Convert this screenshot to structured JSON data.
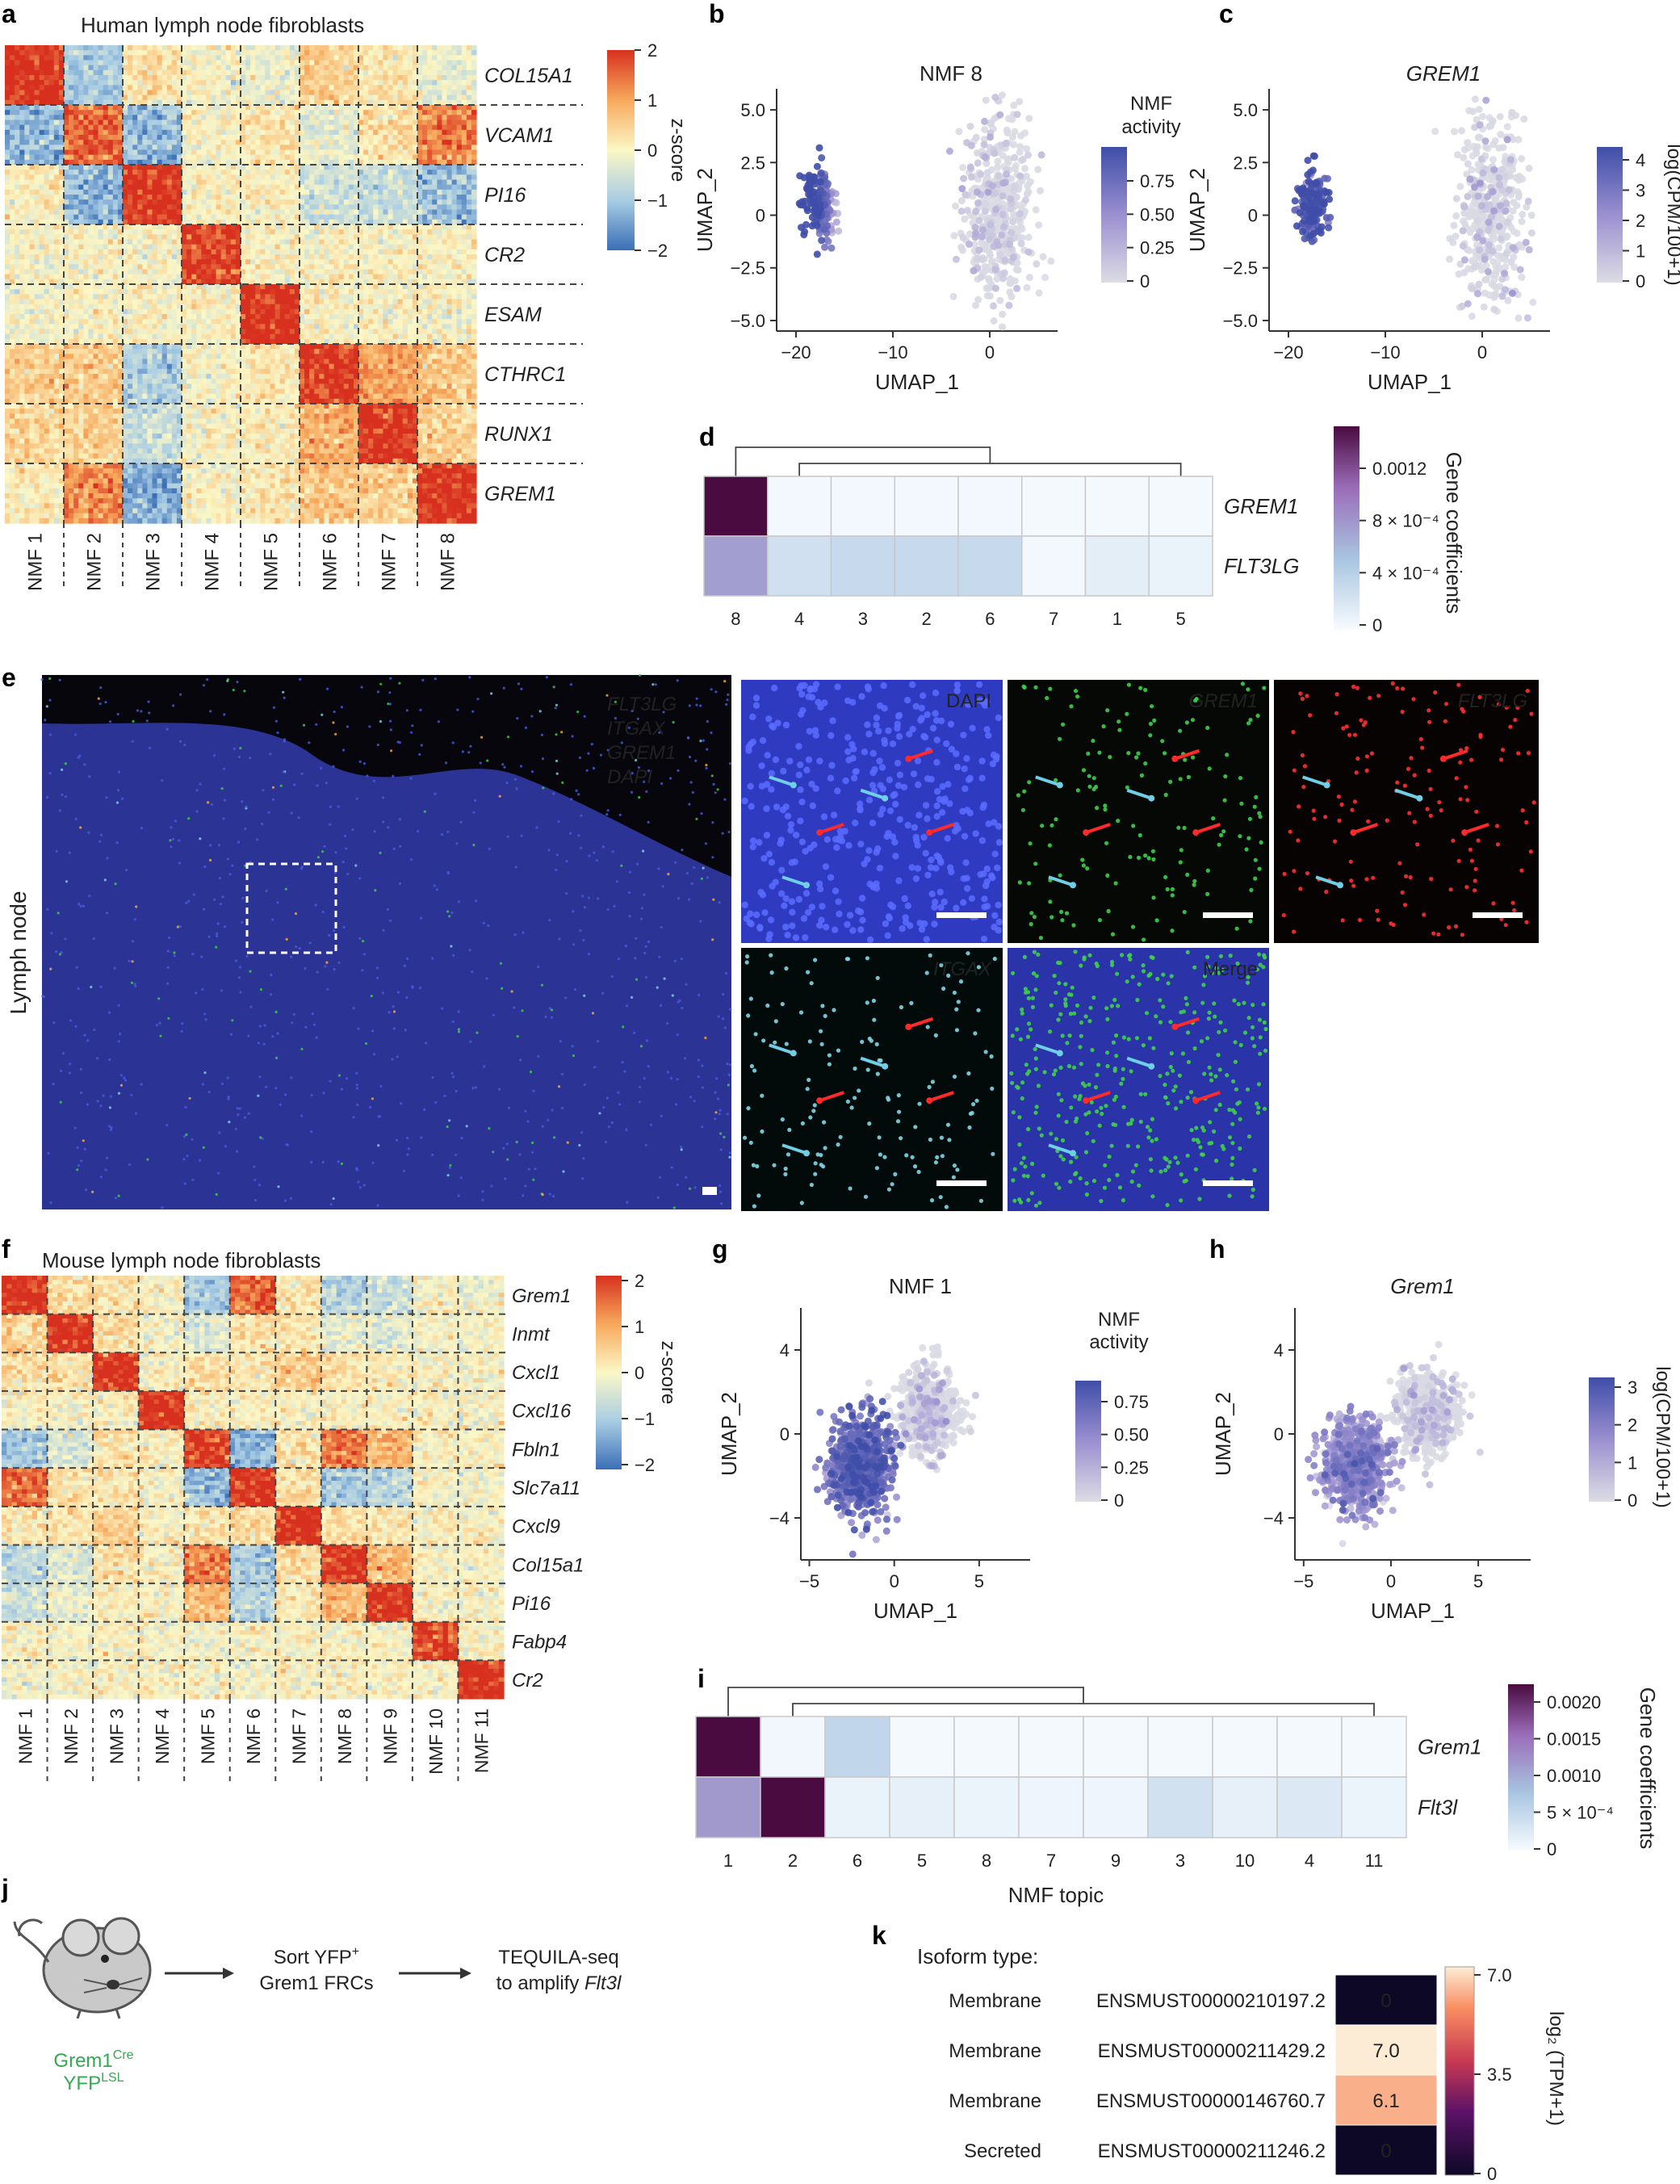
{
  "panels": {
    "a": {
      "letter": "a",
      "title": "Human lymph node fibroblasts",
      "genes": [
        "COL15A1",
        "VCAM1",
        "PI16",
        "CR2",
        "ESAM",
        "CTHRC1",
        "RUNX1",
        "GREM1"
      ],
      "columns": [
        "NMF 1",
        "NMF 2",
        "NMF 3",
        "NMF 4",
        "NMF 5",
        "NMF 6",
        "NMF 7",
        "NMF 8"
      ],
      "colorbar": {
        "label": "z-score",
        "ticks": [
          "2",
          "1",
          "0",
          "−1",
          "−2"
        ]
      }
    },
    "b": {
      "letter": "b",
      "title": "NMF 8",
      "xlabel": "UMAP_1",
      "ylabel": "UMAP_2",
      "xticks": [
        "−20",
        "−10",
        "0"
      ],
      "yticks": [
        "5.0",
        "2.5",
        "0",
        "−2.5",
        "−5.0"
      ],
      "colorbar": {
        "label_lines": [
          "NMF",
          "activity"
        ],
        "ticks": [
          "0.75",
          "0.50",
          "0.25",
          "0"
        ]
      }
    },
    "c": {
      "letter": "c",
      "title": "GREM1",
      "xlabel": "UMAP_1",
      "ylabel": "UMAP_2",
      "xticks": [
        "−20",
        "−10",
        "0"
      ],
      "yticks": [
        "5.0",
        "2.5",
        "0",
        "−2.5",
        "−5.0"
      ],
      "colorbar": {
        "label": "log(CPM/100+1)",
        "ticks": [
          "4",
          "3",
          "2",
          "1",
          "0"
        ]
      }
    },
    "d": {
      "letter": "d",
      "rows": [
        "GREM1",
        "FLT3LG"
      ],
      "columns": [
        "8",
        "4",
        "3",
        "2",
        "6",
        "7",
        "1",
        "5"
      ],
      "colorbar": {
        "label": "Gene coefficients",
        "ticks": [
          "0.0012",
          "8 × 10⁻⁴",
          "4 × 10⁻⁴",
          "0"
        ]
      }
    },
    "e": {
      "letter": "e",
      "side_label": "Lymph node",
      "legend": [
        {
          "text": "FLT3LG",
          "color": "#ff3030"
        },
        {
          "text": "ITGAX",
          "color": "#7fd6e6"
        },
        {
          "text": "GREM1",
          "color": "#3fcf4a"
        },
        {
          "text": "DAPI",
          "color": "#5a6bff"
        }
      ],
      "tiles": [
        {
          "name": "DAPI",
          "color": "#9aa6ff"
        },
        {
          "name": "GREM1",
          "color": "#3fcf4a"
        },
        {
          "name": "FLT3LG",
          "color": "#ff3030"
        },
        {
          "name": "ITGAX",
          "color": "#7fd6e6"
        },
        {
          "name": "Merge",
          "color": "#ffffff"
        }
      ]
    },
    "f": {
      "letter": "f",
      "title": "Mouse lymph node fibroblasts",
      "genes": [
        "Grem1",
        "Inmt",
        "Cxcl1",
        "Cxcl16",
        "Fbln1",
        "Slc7a11",
        "Cxcl9",
        "Col15a1",
        "Pi16",
        "Fabp4",
        "Cr2"
      ],
      "columns": [
        "NMF 1",
        "NMF 2",
        "NMF 3",
        "NMF 4",
        "NMF 5",
        "NMF 6",
        "NMF 7",
        "NMF 8",
        "NMF 9",
        "NMF 10",
        "NMF 11"
      ],
      "colorbar": {
        "label": "z-score",
        "ticks": [
          "2",
          "1",
          "0",
          "−1",
          "−2"
        ]
      }
    },
    "g": {
      "letter": "g",
      "title": "NMF 1",
      "xlabel": "UMAP_1",
      "ylabel": "UMAP_2",
      "xticks": [
        "−5",
        "0",
        "5"
      ],
      "yticks": [
        "4",
        "0",
        "−4"
      ],
      "colorbar": {
        "label_lines": [
          "NMF",
          "activity"
        ],
        "ticks": [
          "0.75",
          "0.50",
          "0.25",
          "0"
        ]
      }
    },
    "h": {
      "letter": "h",
      "title": "Grem1",
      "xlabel": "UMAP_1",
      "ylabel": "UMAP_2",
      "xticks": [
        "−5",
        "0",
        "5"
      ],
      "yticks": [
        "4",
        "0",
        "−4"
      ],
      "colorbar": {
        "label": "log(CPM/100+1)",
        "ticks": [
          "3",
          "2",
          "1",
          "0"
        ]
      }
    },
    "i": {
      "letter": "i",
      "rows": [
        "Grem1",
        "Flt3l"
      ],
      "columns": [
        "1",
        "2",
        "6",
        "5",
        "8",
        "7",
        "9",
        "3",
        "10",
        "4",
        "11"
      ],
      "xlabel": "NMF topic",
      "colorbar": {
        "label": "Gene coefficients",
        "ticks": [
          "0.0020",
          "0.0015",
          "0.0010",
          "5 × 10⁻⁴",
          "0"
        ]
      }
    },
    "j": {
      "letter": "j",
      "mouse_label_1": "Grem1",
      "mouse_label_1_sup": "Cre",
      "mouse_label_2": "YFP",
      "mouse_label_2_sup": "LSL",
      "step1_line1": "Sort YFP",
      "step1_line1_sup": "+",
      "step1_line2": "Grem1 FRCs",
      "step2_line1": "TEQUILA-seq",
      "step2_line2": "to amplify ",
      "step2_gene": "Flt3l"
    },
    "k": {
      "letter": "k",
      "header": "Isoform type:",
      "rows": [
        {
          "type": "Membrane",
          "id": "ENSMUST00000210197.2",
          "value": "0"
        },
        {
          "type": "Membrane",
          "id": "ENSMUST00000211429.2",
          "value": "7.0"
        },
        {
          "type": "Membrane",
          "id": "ENSMUST00000146760.7",
          "value": "6.1"
        },
        {
          "type": "Secreted",
          "id": "ENSMUST00000211246.2",
          "value": "0"
        }
      ],
      "colorbar": {
        "label": "log₂ (TPM+1)",
        "ticks": [
          "7.0",
          "3.5",
          "0"
        ]
      }
    }
  },
  "chart_data": [
    {
      "panel": "a",
      "type": "heatmap",
      "title": "Human lymph node fibroblasts",
      "rows": [
        "COL15A1",
        "VCAM1",
        "PI16",
        "CR2",
        "ESAM",
        "CTHRC1",
        "RUNX1",
        "GREM1"
      ],
      "columns": [
        "NMF 1",
        "NMF 2",
        "NMF 3",
        "NMF 4",
        "NMF 5",
        "NMF 6",
        "NMF 7",
        "NMF 8"
      ],
      "values": [
        [
          2,
          -1,
          0.3,
          0,
          -0.2,
          0.5,
          0.2,
          -0.2
        ],
        [
          -1.2,
          1.5,
          -1.2,
          0,
          0.2,
          -0.3,
          0.3,
          1.3
        ],
        [
          0.1,
          -1.2,
          2,
          0,
          0.1,
          -0.5,
          -0.6,
          -1.1
        ],
        [
          0,
          0,
          0,
          1.8,
          0,
          0,
          0,
          0
        ],
        [
          -0.1,
          0,
          0,
          0,
          2,
          0,
          0,
          0
        ],
        [
          0.5,
          0.6,
          -0.9,
          0,
          0.2,
          1.9,
          1,
          0.6
        ],
        [
          0.4,
          0.5,
          -0.6,
          0,
          0.1,
          0.9,
          2,
          0.5
        ],
        [
          0.1,
          1.2,
          -1.3,
          0,
          0.2,
          0.6,
          0.5,
          2
        ]
      ],
      "zlim": [
        -2,
        2
      ],
      "zlabel": "z-score"
    },
    {
      "panel": "d",
      "type": "heatmap",
      "rows": [
        "GREM1",
        "FLT3LG"
      ],
      "columns": [
        "8",
        "4",
        "3",
        "2",
        "6",
        "7",
        "1",
        "5"
      ],
      "values": [
        [
          0.0014,
          3e-05,
          3e-05,
          3e-05,
          3e-05,
          2e-05,
          2e-05,
          2e-05
        ],
        [
          0.0007,
          0.00024,
          0.0003,
          0.0003,
          0.0003,
          3e-05,
          0.00012,
          8e-05
        ]
      ],
      "zlim": [
        0,
        0.0014
      ],
      "zlabel": "Gene coefficients"
    },
    {
      "panel": "f",
      "type": "heatmap",
      "title": "Mouse lymph node fibroblasts",
      "rows": [
        "Grem1",
        "Inmt",
        "Cxcl1",
        "Cxcl16",
        "Fbln1",
        "Slc7a11",
        "Cxcl9",
        "Col15a1",
        "Pi16",
        "Fabp4",
        "Cr2"
      ],
      "columns": [
        "NMF 1",
        "NMF 2",
        "NMF 3",
        "NMF 4",
        "NMF 5",
        "NMF 6",
        "NMF 7",
        "NMF 8",
        "NMF 9",
        "NMF 10",
        "NMF 11"
      ],
      "values": [
        [
          2,
          0.4,
          0.3,
          0,
          -1,
          1.5,
          0.2,
          -0.8,
          -0.6,
          0,
          -0.1
        ],
        [
          0.4,
          2,
          0.3,
          0,
          -0.4,
          0.3,
          0.2,
          -0.3,
          -0.3,
          0,
          0
        ],
        [
          0.3,
          0.3,
          2,
          0,
          0.3,
          0.2,
          0.5,
          0.3,
          0.1,
          0,
          0
        ],
        [
          0,
          0,
          0,
          2,
          0.1,
          0,
          0,
          0,
          0,
          0,
          0
        ],
        [
          -1,
          -0.4,
          0.3,
          0.1,
          1.8,
          -1.2,
          0.2,
          1.3,
          0.8,
          0,
          0
        ],
        [
          1.5,
          0.3,
          0.2,
          0,
          -1.2,
          2,
          0.3,
          -1,
          -0.8,
          0,
          -0.1
        ],
        [
          0.2,
          0.2,
          0.5,
          0,
          0.2,
          0.3,
          2,
          0.3,
          0.2,
          0,
          0
        ],
        [
          -0.8,
          -0.3,
          0.3,
          0,
          1.3,
          -1,
          0.3,
          2,
          0.8,
          0,
          0
        ],
        [
          -0.6,
          -0.3,
          0.1,
          0,
          0.8,
          -0.8,
          0.2,
          0.8,
          2,
          0,
          0
        ],
        [
          0,
          0,
          0,
          0,
          0,
          0,
          0,
          0,
          0,
          1.8,
          0
        ],
        [
          -0.1,
          0,
          0,
          0,
          0,
          -0.1,
          0,
          0,
          0,
          0,
          2
        ]
      ],
      "zlim": [
        -2,
        2
      ],
      "zlabel": "z-score"
    },
    {
      "panel": "i",
      "type": "heatmap",
      "rows": [
        "Grem1",
        "Flt3l"
      ],
      "columns": [
        "1",
        "2",
        "6",
        "5",
        "8",
        "7",
        "9",
        "3",
        "10",
        "4",
        "11"
      ],
      "values": [
        [
          0.0021,
          5e-05,
          0.0005,
          3e-05,
          3e-05,
          3e-05,
          3e-05,
          3e-05,
          3e-05,
          3e-05,
          3e-05
        ],
        [
          0.0011,
          0.0021,
          0.00012,
          0.00015,
          0.0001,
          8e-05,
          8e-05,
          0.00035,
          0.00015,
          0.00025,
          0.0001
        ]
      ],
      "zlim": [
        0,
        0.0021
      ],
      "zlabel": "Gene coefficients",
      "xlabel": "NMF topic"
    },
    {
      "panel": "k",
      "type": "heatmap",
      "rows": [
        "ENSMUST00000210197.2",
        "ENSMUST00000211429.2",
        "ENSMUST00000146760.7",
        "ENSMUST00000211246.2"
      ],
      "values": [
        0,
        7.0,
        6.1,
        0
      ],
      "zlim": [
        0,
        7.0
      ],
      "zlabel": "log₂ (TPM+1)"
    },
    {
      "panel": "b",
      "type": "scatter",
      "title": "NMF 8",
      "xlabel": "UMAP_1",
      "ylabel": "UMAP_2",
      "xlim": [
        -22,
        7
      ],
      "ylim": [
        -5.5,
        6
      ],
      "clusters": [
        {
          "center": [
            -17.5,
            0.5
          ],
          "spread": [
            1.6,
            1.5
          ],
          "n": 170,
          "level": 0.85
        },
        {
          "center": [
            1,
            0
          ],
          "spread": [
            3.5,
            4.6
          ],
          "n": 460,
          "level": 0.1
        }
      ]
    },
    {
      "panel": "c",
      "type": "scatter",
      "title": "GREM1",
      "xlabel": "UMAP_1",
      "ylabel": "UMAP_2",
      "xlim": [
        -22,
        7
      ],
      "ylim": [
        -5.5,
        6
      ],
      "clusters": [
        {
          "center": [
            -17.5,
            0.5
          ],
          "spread": [
            1.6,
            1.5
          ],
          "n": 170,
          "level": 0.9
        },
        {
          "center": [
            1,
            0
          ],
          "spread": [
            3.5,
            4.6
          ],
          "n": 460,
          "level": 0.05
        }
      ]
    },
    {
      "panel": "g",
      "type": "scatter",
      "title": "NMF 1",
      "xlabel": "UMAP_1",
      "ylabel": "UMAP_2",
      "xlim": [
        -5.5,
        8
      ],
      "ylim": [
        -6,
        6
      ],
      "clusters": [
        {
          "center": [
            -2,
            -1.5
          ],
          "spread": [
            1.8,
            2.2
          ],
          "n": 700,
          "level": 0.7
        },
        {
          "center": [
            2,
            1
          ],
          "spread": [
            1.8,
            2.0
          ],
          "n": 520,
          "level": 0.1
        }
      ]
    },
    {
      "panel": "h",
      "type": "scatter",
      "title": "Grem1",
      "xlabel": "UMAP_1",
      "ylabel": "UMAP_2",
      "xlim": [
        -5.5,
        8
      ],
      "ylim": [
        -6,
        6
      ],
      "clusters": [
        {
          "center": [
            -2,
            -1.5
          ],
          "spread": [
            1.8,
            2.2
          ],
          "n": 700,
          "level": 0.45
        },
        {
          "center": [
            2,
            1
          ],
          "spread": [
            1.8,
            2.0
          ],
          "n": 520,
          "level": 0.05
        }
      ]
    }
  ]
}
